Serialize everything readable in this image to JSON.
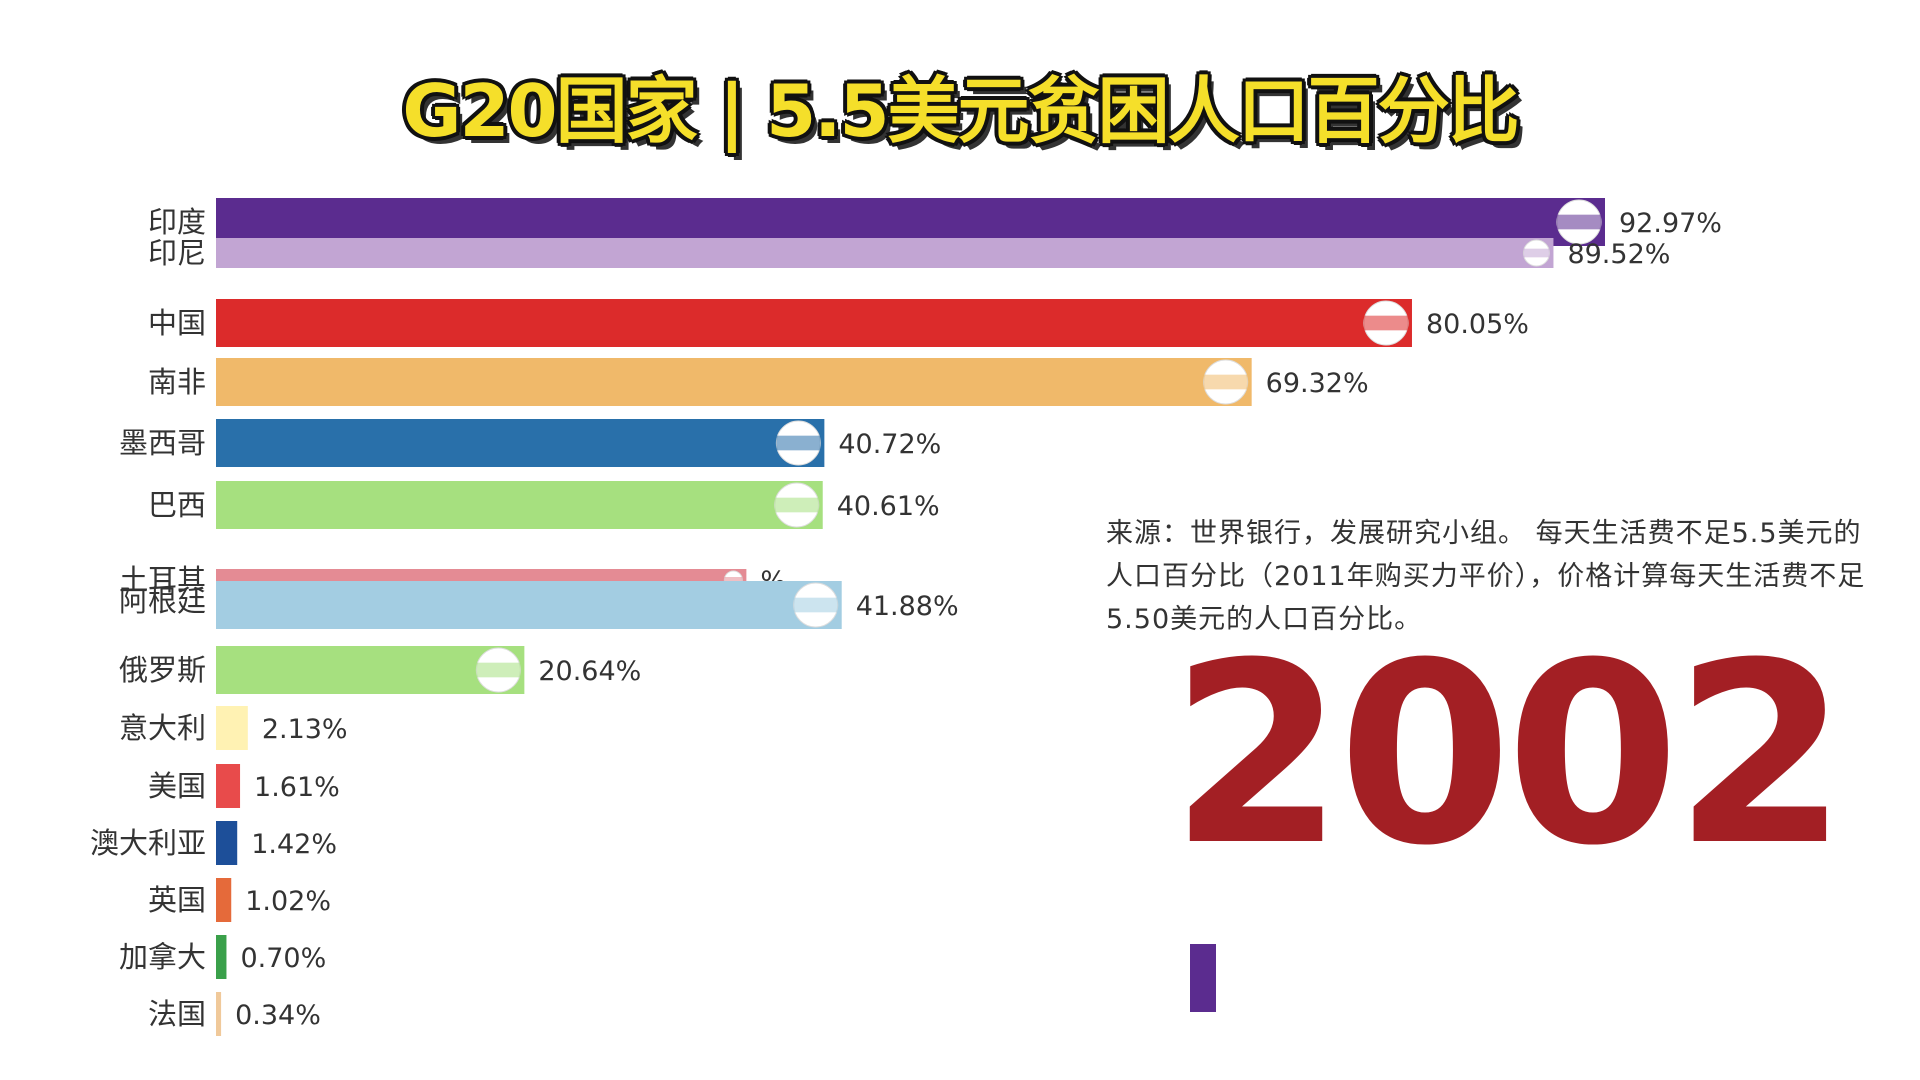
{
  "title": "G20国家 | 5.5美元贫困人口百分比",
  "source": "来源：世界银行，发展研究小组。 每天生活费不足5.5美元的人口百分比（2011年购买力平价），价格计算每天生活费不足5.50美元的人口百分比。",
  "year": "2002",
  "colors": {
    "title_fill": "#f5df2a",
    "year": "#a31f24",
    "progress": "#5b2c8f",
    "text": "#333333"
  },
  "chart_data": {
    "type": "bar",
    "orientation": "horizontal",
    "title": "G20国家 | 5.5美元贫困人口百分比",
    "xlim": [
      0,
      92.97
    ],
    "grid": false,
    "categories": [
      "印度",
      "印尼",
      "中国",
      "南非",
      "墨西哥",
      "巴西",
      "土耳其",
      "阿根廷",
      "俄罗斯",
      "意大利",
      "美国",
      "澳大利亚",
      "英国",
      "加拿大",
      "法国"
    ],
    "values": [
      92.97,
      89.52,
      80.05,
      69.32,
      40.72,
      40.61,
      35.5,
      41.88,
      20.64,
      2.13,
      1.61,
      1.42,
      1.02,
      0.7,
      0.34
    ],
    "value_labels": [
      "92.97%",
      "89.52%",
      "80.05%",
      "69.32%",
      "40.72%",
      "40.61%",
      "%",
      "41.88%",
      "20.64%",
      "2.13%",
      "1.61%",
      "1.42%",
      "1.02%",
      "0.70%",
      "0.34%"
    ],
    "bar_colors": [
      "#5b2c8f",
      "#c2a5d3",
      "#dc2b2b",
      "#f0b96a",
      "#2970aa",
      "#a6e07f",
      "#e48b94",
      "#a3cde2",
      "#a6e07f",
      "#fff2b3",
      "#e84b4b",
      "#1d4f99",
      "#e56a3a",
      "#3aa04a",
      "#f0c99a"
    ],
    "flag_icons": [
      "india-flag-icon",
      "indonesia-flag-icon",
      "china-flag-icon",
      "south-africa-flag-icon",
      "mexico-flag-icon",
      "brazil-flag-icon",
      "turkey-flag-icon",
      "argentina-flag-icon",
      "russia-flag-icon",
      "italy-flag-icon",
      "usa-flag-icon",
      "australia-flag-icon",
      "uk-flag-icon",
      "canada-flag-icon",
      "france-flag-icon"
    ]
  }
}
